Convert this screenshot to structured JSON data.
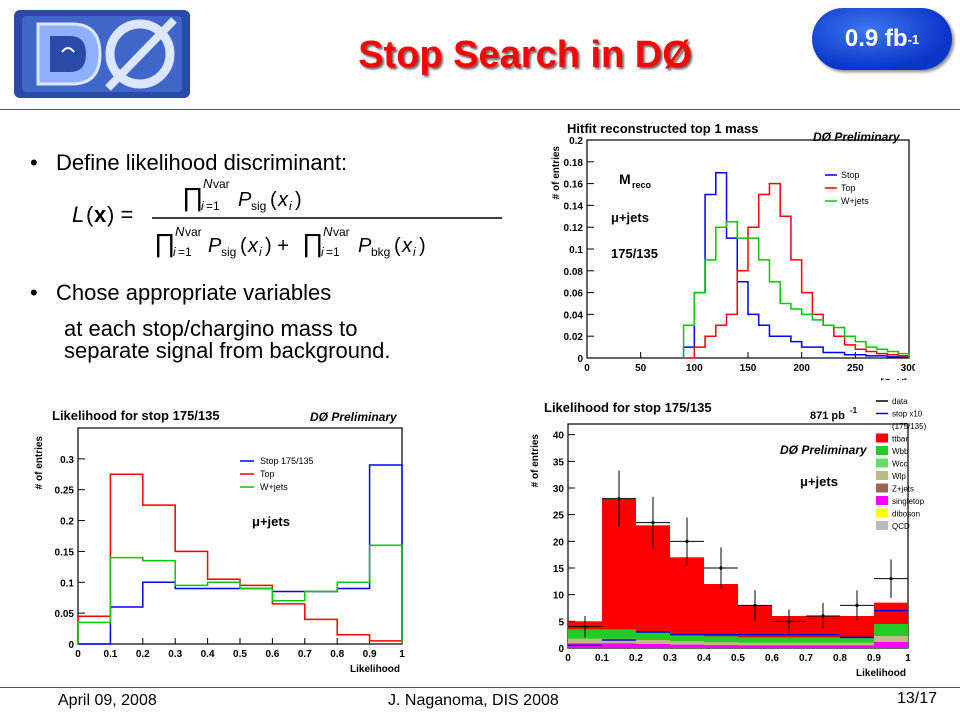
{
  "slide": {
    "title": "Stop Search in DØ",
    "lumi_main": "0.9 fb",
    "lumi_exp": "-1",
    "bullet1": "Define likelihood discriminant:",
    "bullet2": "Chose appropriate variables",
    "bullet2_line2": "at each stop/chargino mass to",
    "bullet2_line3": "separate signal from background.",
    "footer_date": "April 09, 2008",
    "footer_author": "J. Naganoma, DIS 2008",
    "footer_page": "13/17",
    "colors": {
      "title": "#ff0000",
      "lumi_bg": "#1a45d8",
      "stop": "#0000ff",
      "top": "#ff0000",
      "wjets": "#00cc00"
    }
  },
  "chart_data": [
    {
      "type": "line",
      "title": "Hitfit reconstructed top 1 mass",
      "tag": "DØ Preliminary",
      "xlabel": "mass[GeV]",
      "ylabel": "# of entries",
      "xlim": [
        0,
        300
      ],
      "ylim": [
        0,
        0.2
      ],
      "xticks": [
        "0",
        "50",
        "100",
        "150",
        "200",
        "250",
        "300"
      ],
      "yticks": [
        "0",
        "0.02",
        "0.04",
        "0.06",
        "0.08",
        "0.1",
        "0.12",
        "0.14",
        "0.16",
        "0.18",
        "0.2"
      ],
      "annotations": [
        "M",
        "reco",
        "μ+jets",
        "175/135"
      ],
      "bin_edges": [
        90,
        100,
        110,
        120,
        130,
        140,
        150,
        160,
        170,
        180,
        190,
        200,
        210,
        220,
        230,
        240,
        250,
        260,
        270,
        280,
        290,
        300
      ],
      "series": [
        {
          "name": "Stop",
          "color": "#0000ff",
          "values": [
            0.01,
            0.06,
            0.15,
            0.17,
            0.11,
            0.07,
            0.04,
            0.03,
            0.02,
            0.02,
            0.015,
            0.01,
            0.01,
            0.005,
            0.005,
            0.003,
            0.003,
            0.002,
            0.002,
            0.001,
            0.001
          ]
        },
        {
          "name": "Top",
          "color": "#ff0000",
          "values": [
            0.0,
            0.01,
            0.02,
            0.03,
            0.04,
            0.08,
            0.12,
            0.15,
            0.16,
            0.13,
            0.09,
            0.06,
            0.04,
            0.03,
            0.02,
            0.012,
            0.008,
            0.006,
            0.004,
            0.003,
            0.002
          ]
        },
        {
          "name": "W+jets",
          "color": "#00cc00",
          "values": [
            0.03,
            0.06,
            0.09,
            0.12,
            0.125,
            0.11,
            0.11,
            0.09,
            0.07,
            0.05,
            0.045,
            0.04,
            0.035,
            0.03,
            0.028,
            0.02,
            0.015,
            0.01,
            0.008,
            0.006,
            0.004
          ]
        }
      ]
    },
    {
      "type": "line",
      "title": "Likelihood for stop 175/135",
      "tag": "DØ Preliminary",
      "xlabel": "Likelihood",
      "ylabel": "# of entries",
      "xlim": [
        0,
        1
      ],
      "ylim": [
        0,
        0.35
      ],
      "xticks": [
        "0",
        "0.1",
        "0.2",
        "0.3",
        "0.4",
        "0.5",
        "0.6",
        "0.7",
        "0.8",
        "0.9",
        "1"
      ],
      "yticks": [
        "0",
        "0.05",
        "0.1",
        "0.15",
        "0.2",
        "0.25",
        "0.3"
      ],
      "annotations": [
        "μ+jets"
      ],
      "bin_edges": [
        0,
        0.1,
        0.2,
        0.3,
        0.4,
        0.5,
        0.6,
        0.7,
        0.8,
        0.9,
        1.0
      ],
      "series": [
        {
          "name": "Stop 175/135",
          "color": "#0000ff",
          "values": [
            0.0,
            0.06,
            0.1,
            0.09,
            0.09,
            0.09,
            0.085,
            0.085,
            0.09,
            0.29
          ]
        },
        {
          "name": "Top",
          "color": "#ff0000",
          "values": [
            0.045,
            0.275,
            0.225,
            0.15,
            0.105,
            0.095,
            0.065,
            0.04,
            0.015,
            0.005
          ]
        },
        {
          "name": "W+jets",
          "color": "#00cc00",
          "values": [
            0.035,
            0.14,
            0.135,
            0.095,
            0.1,
            0.09,
            0.07,
            0.085,
            0.1,
            0.16
          ]
        }
      ]
    },
    {
      "type": "bar",
      "title": "Likelihood for stop 175/135",
      "tag": "DØ Preliminary",
      "lumi_label": "871 pb",
      "lumi_exp": "-1",
      "xlabel": "Likelihood",
      "ylabel": "# of entries",
      "xlim": [
        0,
        1
      ],
      "ylim": [
        0,
        42
      ],
      "xticks": [
        "0",
        "0.1",
        "0.2",
        "0.3",
        "0.4",
        "0.5",
        "0.6",
        "0.7",
        "0.8",
        "0.9",
        "1"
      ],
      "yticks": [
        "0",
        "5",
        "10",
        "15",
        "20",
        "25",
        "30",
        "35",
        "40"
      ],
      "annotations": [
        "μ+jets"
      ],
      "legend": [
        {
          "name": "data",
          "color": "#000000"
        },
        {
          "name": "stop x10",
          "color": "#0000ff"
        },
        {
          "name": "(175/135)",
          "color": ""
        },
        {
          "name": "ttbar",
          "color": "#ff0000"
        },
        {
          "name": "Wbb",
          "color": "#22cc22"
        },
        {
          "name": "Wcc",
          "color": "#66dd66"
        },
        {
          "name": "Wlp",
          "color": "#bbbb88"
        },
        {
          "name": "Z+jets",
          "color": "#996655"
        },
        {
          "name": "singletop",
          "color": "#ff00ff"
        },
        {
          "name": "diboson",
          "color": "#ffff00"
        },
        {
          "name": "QCD",
          "color": "#bbbbbb"
        }
      ],
      "bin_edges": [
        0,
        0.1,
        0.2,
        0.3,
        0.4,
        0.5,
        0.6,
        0.7,
        0.8,
        0.9,
        1.0
      ],
      "totals": [
        5,
        28,
        23,
        17,
        12,
        8,
        6,
        6,
        6,
        8.5
      ],
      "background_share": [
        3.5,
        3.5,
        3.0,
        2.5,
        2.2,
        2.0,
        2.0,
        2.0,
        2.0,
        4.5
      ],
      "data": [
        4,
        28,
        23.5,
        20,
        15,
        8,
        5,
        6,
        8,
        13
      ],
      "stop": [
        0.5,
        1.5,
        3.0,
        2.5,
        2.5,
        2.5,
        2.5,
        2.5,
        2.0,
        7.0
      ]
    }
  ]
}
